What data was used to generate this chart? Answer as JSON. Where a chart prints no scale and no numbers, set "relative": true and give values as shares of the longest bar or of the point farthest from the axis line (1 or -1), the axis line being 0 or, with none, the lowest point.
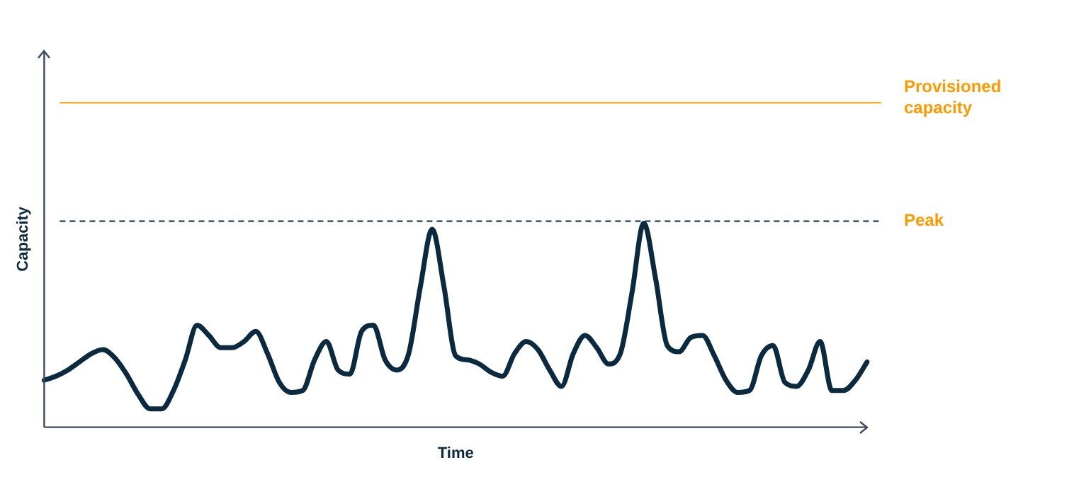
{
  "chart_data": {
    "type": "line",
    "relative": true,
    "xlabel": "Time",
    "ylabel": "Capacity",
    "categories": [
      null,
      null,
      null,
      null,
      null,
      null,
      null,
      null,
      null,
      null,
      null,
      null,
      null,
      null,
      null,
      null,
      null,
      null,
      null,
      null,
      null,
      null,
      null,
      null,
      null,
      null,
      null,
      null,
      null,
      null,
      null,
      null,
      null,
      null,
      null,
      null,
      null,
      null,
      null,
      null,
      null,
      null,
      null,
      null,
      null,
      null,
      null,
      null,
      null,
      null,
      null,
      null,
      null,
      null,
      null,
      null,
      null,
      null,
      null,
      null,
      null,
      null,
      null,
      null,
      null,
      null,
      null,
      null,
      null,
      null,
      null
    ],
    "series": [
      {
        "color": "#0b2a3f",
        "values": [
          0.23,
          0.25,
          0.28,
          0.32,
          0.36,
          0.38,
          0.34,
          0.26,
          0.16,
          0.09,
          0.09,
          0.18,
          0.33,
          0.5,
          0.45,
          0.39,
          0.39,
          0.42,
          0.47,
          0.36,
          0.22,
          0.17,
          0.18,
          0.33,
          0.42,
          0.28,
          0.26,
          0.47,
          0.5,
          0.33,
          0.28,
          0.36,
          0.69,
          0.97,
          0.69,
          0.35,
          0.33,
          0.31,
          0.27,
          0.25,
          0.36,
          0.42,
          0.38,
          0.28,
          0.2,
          0.36,
          0.45,
          0.39,
          0.31,
          0.36,
          0.66,
          1,
          0.73,
          0.4,
          0.37,
          0.44,
          0.45,
          0.35,
          0.23,
          0.17,
          0.18,
          0.35,
          0.4,
          0.22,
          0.2,
          0.28,
          0.42,
          0.18,
          0.18,
          0.23,
          0.32
        ]
      }
    ],
    "ref_lines": [
      {
        "axis": "y",
        "value": 1.59,
        "label": "Provisioned capacity",
        "color": "#ff9900",
        "line_style": "solid"
      },
      {
        "axis": "y",
        "value": 1.01,
        "label": "Peak",
        "color": "#0b2a3f",
        "line_style": "dashed"
      }
    ],
    "grid": false,
    "legend": false,
    "marker": "none",
    "line_style": "solid"
  }
}
